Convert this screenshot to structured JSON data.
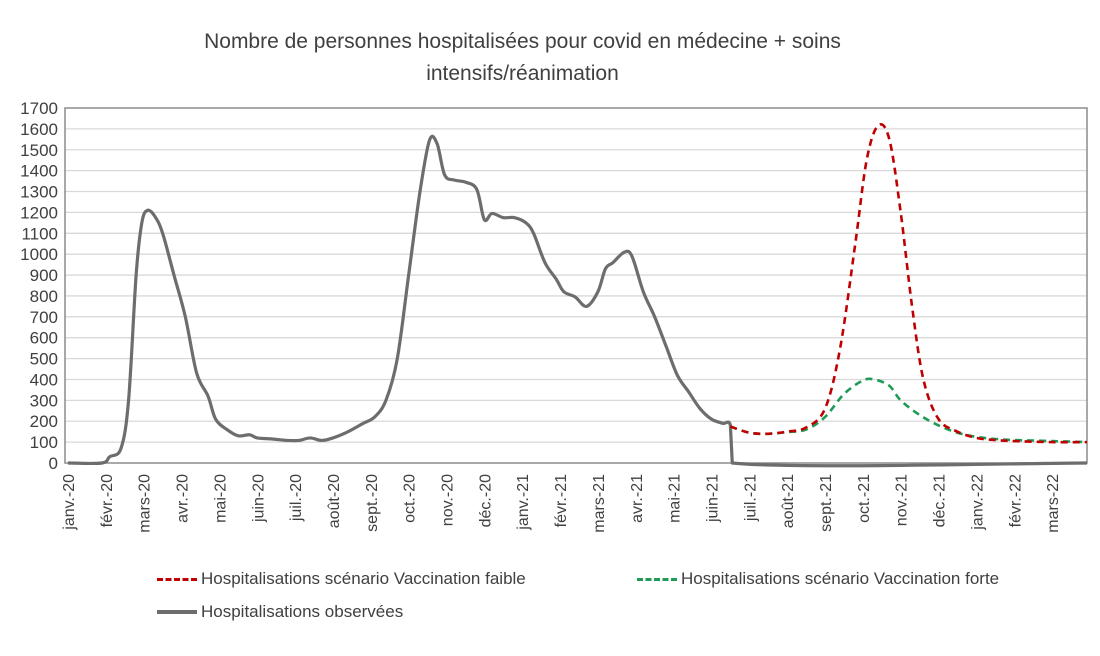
{
  "chart_data": {
    "type": "line",
    "title": "Nombre de personnes hospitalisées pour covid en médecine + soins intensifs/réanimation",
    "title_lines": [
      "Nombre de personnes hospitalisées pour covid en médecine + soins",
      "intensifs/réanimation"
    ],
    "xlabel": "",
    "ylabel": "",
    "ylim": [
      0,
      1700
    ],
    "yticks": [
      0,
      100,
      200,
      300,
      400,
      500,
      600,
      700,
      800,
      900,
      1000,
      1100,
      1200,
      1300,
      1400,
      1500,
      1600,
      1700
    ],
    "grid": true,
    "legend_position": "bottom",
    "categories": [
      "janv.-20",
      "févr.-20",
      "mars-20",
      "avr.-20",
      "mai-20",
      "juin-20",
      "juil.-20",
      "août-20",
      "sept.-20",
      "oct.-20",
      "nov.-20",
      "déc.-20",
      "janv.-21",
      "févr.-21",
      "mars-21",
      "avr.-21",
      "mai-21",
      "juin-21",
      "juil.-21",
      "août-21",
      "sept.-21",
      "oct.-21",
      "nov.-21",
      "déc.-21",
      "janv.-22",
      "févr.-22",
      "mars-22"
    ],
    "series": [
      {
        "name": "Hospitalisations observées",
        "color": "#6d6d6d",
        "style": "solid",
        "points": [
          [
            0,
            0
          ],
          [
            0.9,
            0
          ],
          [
            1.1,
            30
          ],
          [
            1.4,
            70
          ],
          [
            1.6,
            300
          ],
          [
            1.8,
            900
          ],
          [
            1.95,
            1150
          ],
          [
            2.1,
            1210
          ],
          [
            2.3,
            1180
          ],
          [
            2.5,
            1100
          ],
          [
            2.8,
            900
          ],
          [
            3.1,
            700
          ],
          [
            3.4,
            430
          ],
          [
            3.7,
            320
          ],
          [
            3.9,
            210
          ],
          [
            4.2,
            160
          ],
          [
            4.5,
            130
          ],
          [
            4.8,
            135
          ],
          [
            5.0,
            120
          ],
          [
            5.4,
            115
          ],
          [
            5.8,
            108
          ],
          [
            6.1,
            108
          ],
          [
            6.4,
            120
          ],
          [
            6.7,
            108
          ],
          [
            7.0,
            120
          ],
          [
            7.4,
            150
          ],
          [
            7.8,
            190
          ],
          [
            8.1,
            220
          ],
          [
            8.4,
            300
          ],
          [
            8.7,
            500
          ],
          [
            9.0,
            900
          ],
          [
            9.3,
            1300
          ],
          [
            9.55,
            1545
          ],
          [
            9.75,
            1530
          ],
          [
            9.95,
            1380
          ],
          [
            10.2,
            1355
          ],
          [
            10.5,
            1345
          ],
          [
            10.8,
            1310
          ],
          [
            11.0,
            1165
          ],
          [
            11.2,
            1195
          ],
          [
            11.5,
            1175
          ],
          [
            11.8,
            1175
          ],
          [
            12.1,
            1150
          ],
          [
            12.3,
            1100
          ],
          [
            12.6,
            960
          ],
          [
            12.9,
            880
          ],
          [
            13.1,
            820
          ],
          [
            13.4,
            795
          ],
          [
            13.7,
            750
          ],
          [
            14.0,
            820
          ],
          [
            14.2,
            930
          ],
          [
            14.4,
            960
          ],
          [
            14.7,
            1010
          ],
          [
            14.9,
            990
          ],
          [
            15.2,
            820
          ],
          [
            15.5,
            700
          ],
          [
            15.8,
            560
          ],
          [
            16.1,
            420
          ],
          [
            16.4,
            340
          ],
          [
            16.7,
            260
          ],
          [
            17.0,
            210
          ],
          [
            17.3,
            190
          ],
          [
            17.5,
            180
          ],
          [
            17.55,
            0
          ],
          [
            27.6,
            0
          ]
        ]
      },
      {
        "name": "Hospitalisations scénario Vaccination faible",
        "color": "#c00000",
        "style": "dashed",
        "points": [
          [
            17.5,
            175
          ],
          [
            18.0,
            145
          ],
          [
            18.5,
            140
          ],
          [
            19.0,
            150
          ],
          [
            19.5,
            170
          ],
          [
            20.0,
            260
          ],
          [
            20.4,
            550
          ],
          [
            20.8,
            1050
          ],
          [
            21.1,
            1450
          ],
          [
            21.4,
            1615
          ],
          [
            21.7,
            1550
          ],
          [
            22.0,
            1200
          ],
          [
            22.3,
            750
          ],
          [
            22.6,
            400
          ],
          [
            23.0,
            210
          ],
          [
            23.5,
            150
          ],
          [
            24.0,
            120
          ],
          [
            24.5,
            110
          ],
          [
            25.0,
            105
          ],
          [
            26.0,
            100
          ],
          [
            27.6,
            100
          ]
        ]
      },
      {
        "name": "Hospitalisations scénario Vaccination forte",
        "color": "#1e9b57",
        "style": "dashed",
        "points": [
          [
            17.5,
            175
          ],
          [
            18.0,
            145
          ],
          [
            18.5,
            140
          ],
          [
            19.0,
            148
          ],
          [
            19.5,
            160
          ],
          [
            20.0,
            220
          ],
          [
            20.5,
            330
          ],
          [
            21.0,
            395
          ],
          [
            21.3,
            400
          ],
          [
            21.7,
            370
          ],
          [
            22.0,
            300
          ],
          [
            22.5,
            230
          ],
          [
            23.0,
            180
          ],
          [
            23.5,
            145
          ],
          [
            24.0,
            125
          ],
          [
            24.5,
            115
          ],
          [
            25.0,
            110
          ],
          [
            26.0,
            105
          ],
          [
            27.6,
            100
          ]
        ]
      }
    ]
  },
  "legend": {
    "items": [
      {
        "label": "Hospitalisations scénario Vaccination faible",
        "color": "#c00000"
      },
      {
        "label": "Hospitalisations scénario Vaccination forte",
        "color": "#1e9b57"
      },
      {
        "label": "Hospitalisations observées",
        "color": "#6d6d6d"
      }
    ]
  }
}
